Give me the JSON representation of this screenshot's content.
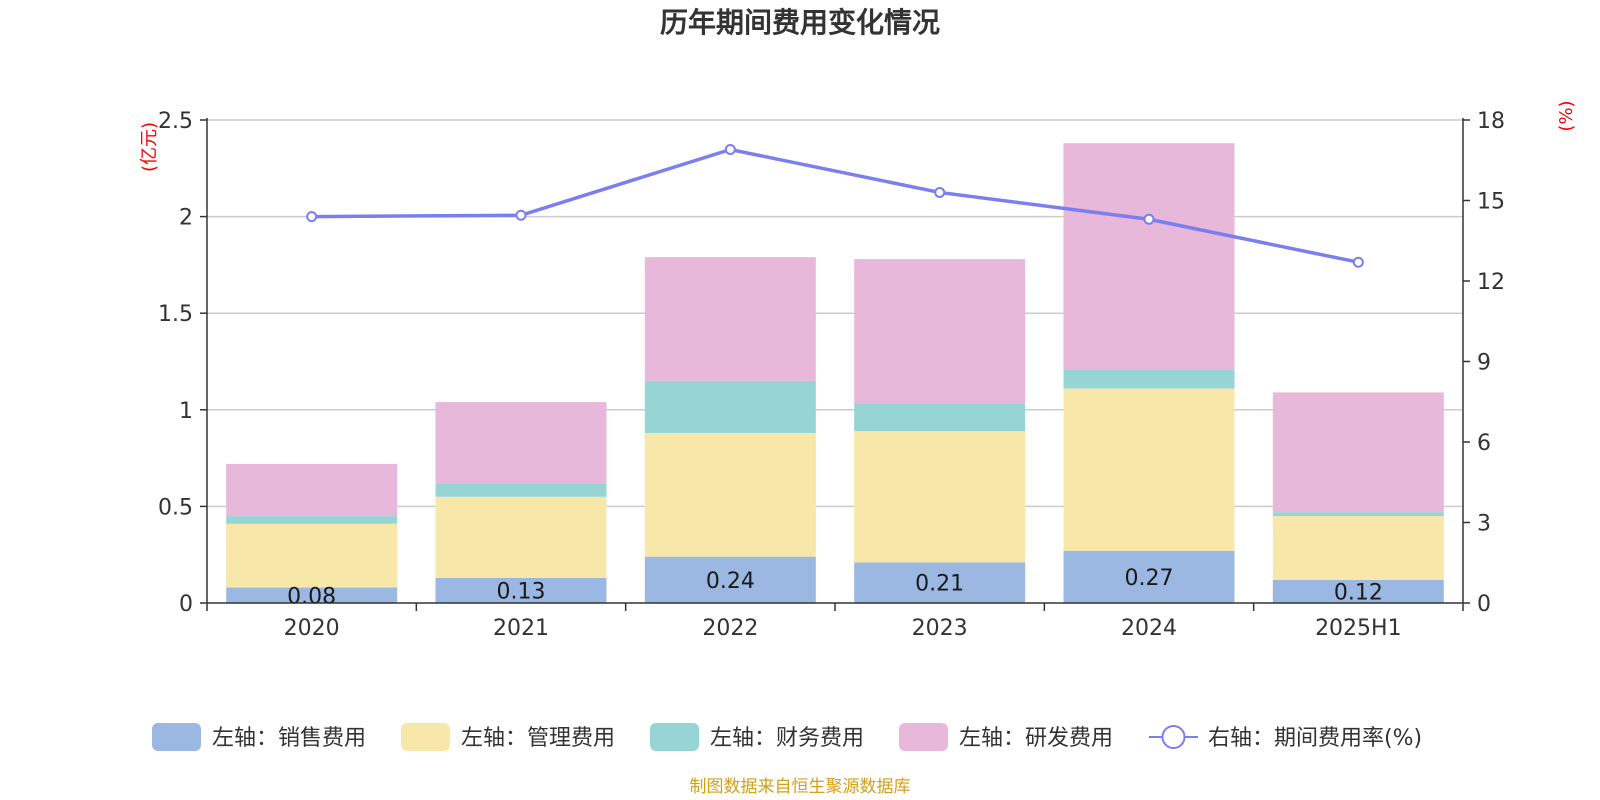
{
  "title": "历年期间费用变化情况",
  "left_unit": "(亿元)",
  "right_unit": "(%)",
  "source": "制图数据来自恒生聚源数据库",
  "colors": {
    "sales": "#9bb8e2",
    "admin": "#f7e7a8",
    "finance": "#97d5d5",
    "rnd": "#e7b8d9",
    "rate": "#7a7ef0",
    "unit": "#ff0000",
    "source": "#d4a017",
    "grid": "#cccccc",
    "axis": "#333333"
  },
  "chart_data": {
    "type": "bar",
    "stacked": true,
    "categories": [
      "2020",
      "2021",
      "2022",
      "2023",
      "2024",
      "2025H1"
    ],
    "y_left": {
      "min": 0,
      "max": 2.5,
      "ticks": [
        "0",
        "0.5",
        "1",
        "1.5",
        "2",
        "2.5"
      ]
    },
    "y_right": {
      "min": 0,
      "max": 18,
      "ticks": [
        "0",
        "3",
        "6",
        "9",
        "12",
        "15",
        "18"
      ]
    },
    "grid": true,
    "legend_position": "bottom",
    "series": [
      {
        "name": "左轴：销售费用",
        "key": "sales",
        "axis": "left",
        "type": "bar",
        "values": [
          0.08,
          0.13,
          0.24,
          0.21,
          0.27,
          0.12
        ],
        "labels": [
          "0.08",
          "0.13",
          "0.24",
          "0.21",
          "0.27",
          "0.12"
        ]
      },
      {
        "name": "左轴：管理费用",
        "key": "admin",
        "axis": "left",
        "type": "bar",
        "values": [
          0.33,
          0.42,
          0.64,
          0.68,
          0.84,
          0.33
        ]
      },
      {
        "name": "左轴：财务费用",
        "key": "finance",
        "axis": "left",
        "type": "bar",
        "values": [
          0.04,
          0.07,
          0.27,
          0.14,
          0.1,
          0.02
        ]
      },
      {
        "name": "左轴：研发费用",
        "key": "rnd",
        "axis": "left",
        "type": "bar",
        "values": [
          0.27,
          0.42,
          0.64,
          0.75,
          1.17,
          0.62
        ]
      },
      {
        "name": "右轴：期间费用率(%)",
        "key": "rate",
        "axis": "right",
        "type": "line",
        "values": [
          14.4,
          14.45,
          16.9,
          15.3,
          14.3,
          12.7
        ]
      }
    ]
  }
}
